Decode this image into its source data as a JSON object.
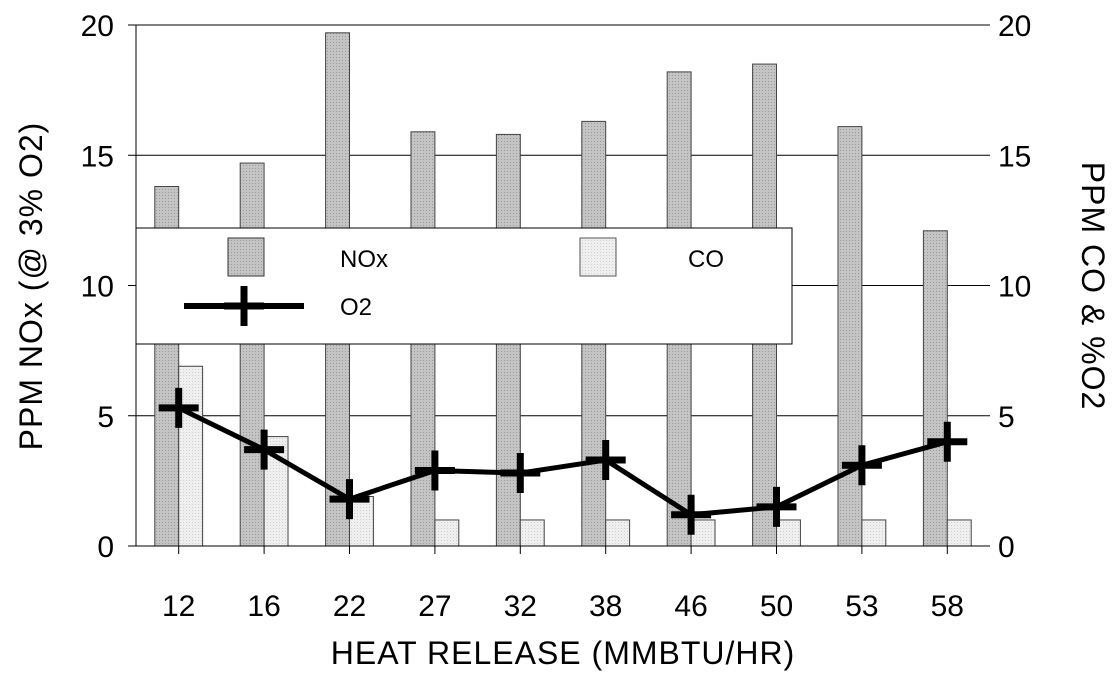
{
  "chart_data": {
    "type": "bar",
    "xlabel": "HEAT RELEASE (MMBTU/HR)",
    "ylabel": "PPM NOx (@ 3% O2)",
    "y2label": "PPM CO & %O2",
    "categories": [
      "12",
      "16",
      "22",
      "27",
      "32",
      "38",
      "46",
      "50",
      "53",
      "58"
    ],
    "ylim": [
      0,
      20
    ],
    "y2lim": [
      0,
      20
    ],
    "yticks": [
      "0",
      "5",
      "10",
      "15",
      "20"
    ],
    "y2ticks": [
      "0",
      "5",
      "10",
      "15",
      "20"
    ],
    "grid": true,
    "legend_position": "middle-left",
    "series": [
      {
        "name": "NOx",
        "kind": "bar",
        "axis": "left",
        "color": "#bdbdbd",
        "values": [
          13.8,
          14.7,
          19.7,
          15.9,
          15.8,
          16.3,
          18.2,
          18.5,
          16.1,
          12.1
        ]
      },
      {
        "name": "CO",
        "kind": "bar",
        "axis": "right",
        "color": "#e8e8e8",
        "values": [
          6.9,
          4.2,
          1.9,
          1.0,
          1.0,
          1.0,
          1.0,
          1.0,
          1.0,
          1.0
        ]
      },
      {
        "name": "O2",
        "kind": "line",
        "axis": "right",
        "color": "#000000",
        "values": [
          5.3,
          3.7,
          1.8,
          2.9,
          2.8,
          3.3,
          1.2,
          1.5,
          3.1,
          4.0
        ]
      }
    ]
  }
}
